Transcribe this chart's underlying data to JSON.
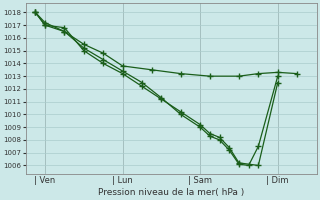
{
  "bg_color": "#cce8e8",
  "grid_color": "#aacccc",
  "line_color": "#1a5e1a",
  "xlabel": "Pression niveau de la mer( hPa )",
  "ylim": [
    1005.3,
    1018.7
  ],
  "yticks": [
    1006,
    1007,
    1008,
    1009,
    1010,
    1011,
    1012,
    1013,
    1014,
    1015,
    1016,
    1017,
    1018
  ],
  "xtick_labels": [
    "| Ven",
    "| Lun",
    "| Sam",
    "| Dim"
  ],
  "xtick_positions": [
    1.0,
    5.0,
    9.0,
    13.0
  ],
  "xlim": [
    0,
    15
  ],
  "s1x": [
    0.5,
    1.0,
    2.0,
    3.0,
    4.0,
    5.0,
    6.0,
    7.0,
    8.0,
    9.0,
    9.5,
    10.0,
    10.5,
    11.0,
    12.0,
    13.0
  ],
  "s1y": [
    1018.0,
    1017.0,
    1016.8,
    1015.0,
    1014.0,
    1013.2,
    1012.2,
    1011.2,
    1010.2,
    1009.2,
    1008.5,
    1008.2,
    1007.4,
    1006.2,
    1006.0,
    1012.5
  ],
  "s2x": [
    0.5,
    1.0,
    2.0,
    3.0,
    4.0,
    5.0,
    6.0,
    7.0,
    8.0,
    9.0,
    9.5,
    10.0,
    10.5,
    11.0,
    11.5,
    12.0,
    13.0
  ],
  "s2y": [
    1018.0,
    1017.2,
    1016.5,
    1015.2,
    1014.3,
    1013.4,
    1012.5,
    1011.3,
    1010.0,
    1009.0,
    1008.3,
    1008.0,
    1007.2,
    1006.1,
    1006.0,
    1007.5,
    1013.0
  ],
  "s3x": [
    0.5,
    1.0,
    2.0,
    3.0,
    4.0,
    5.0,
    6.5,
    8.0,
    9.5,
    11.0,
    12.0,
    13.0,
    14.0
  ],
  "s3y": [
    1018.0,
    1017.0,
    1016.5,
    1015.5,
    1014.8,
    1013.8,
    1013.5,
    1013.2,
    1013.0,
    1013.0,
    1013.2,
    1013.3,
    1013.2
  ]
}
